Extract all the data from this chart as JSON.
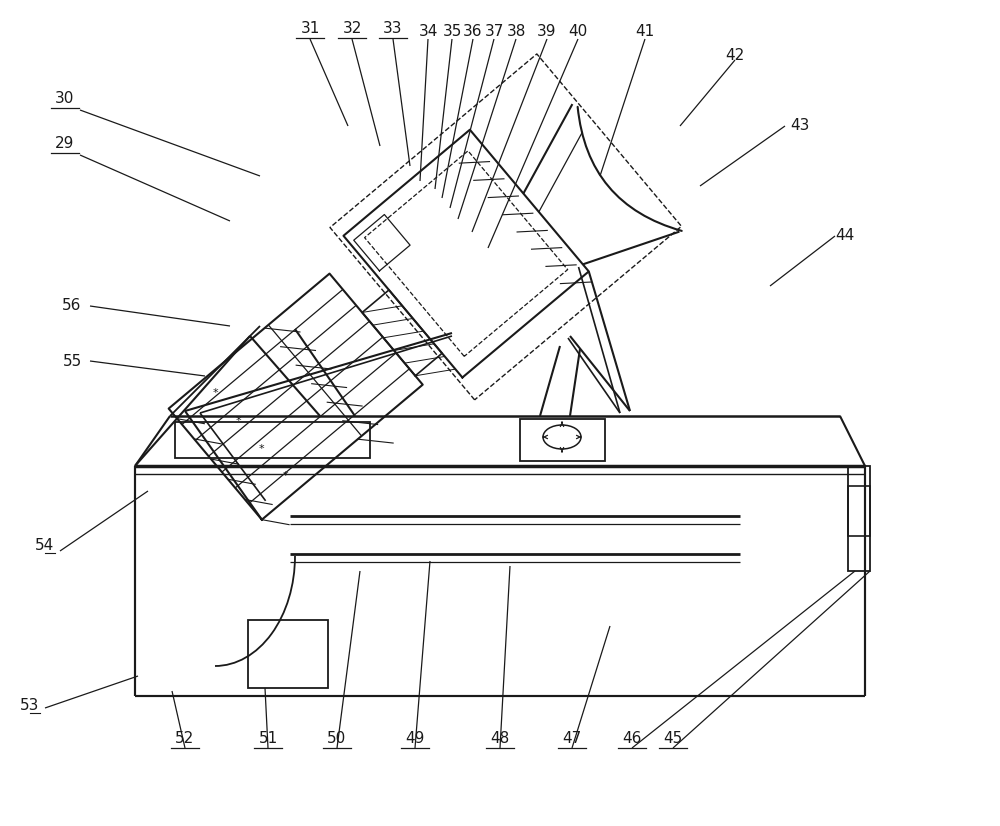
{
  "bg_color": "#ffffff",
  "line_color": "#1a1a1a",
  "label_color": "#1a1a1a",
  "fig_width": 10.0,
  "fig_height": 8.26
}
